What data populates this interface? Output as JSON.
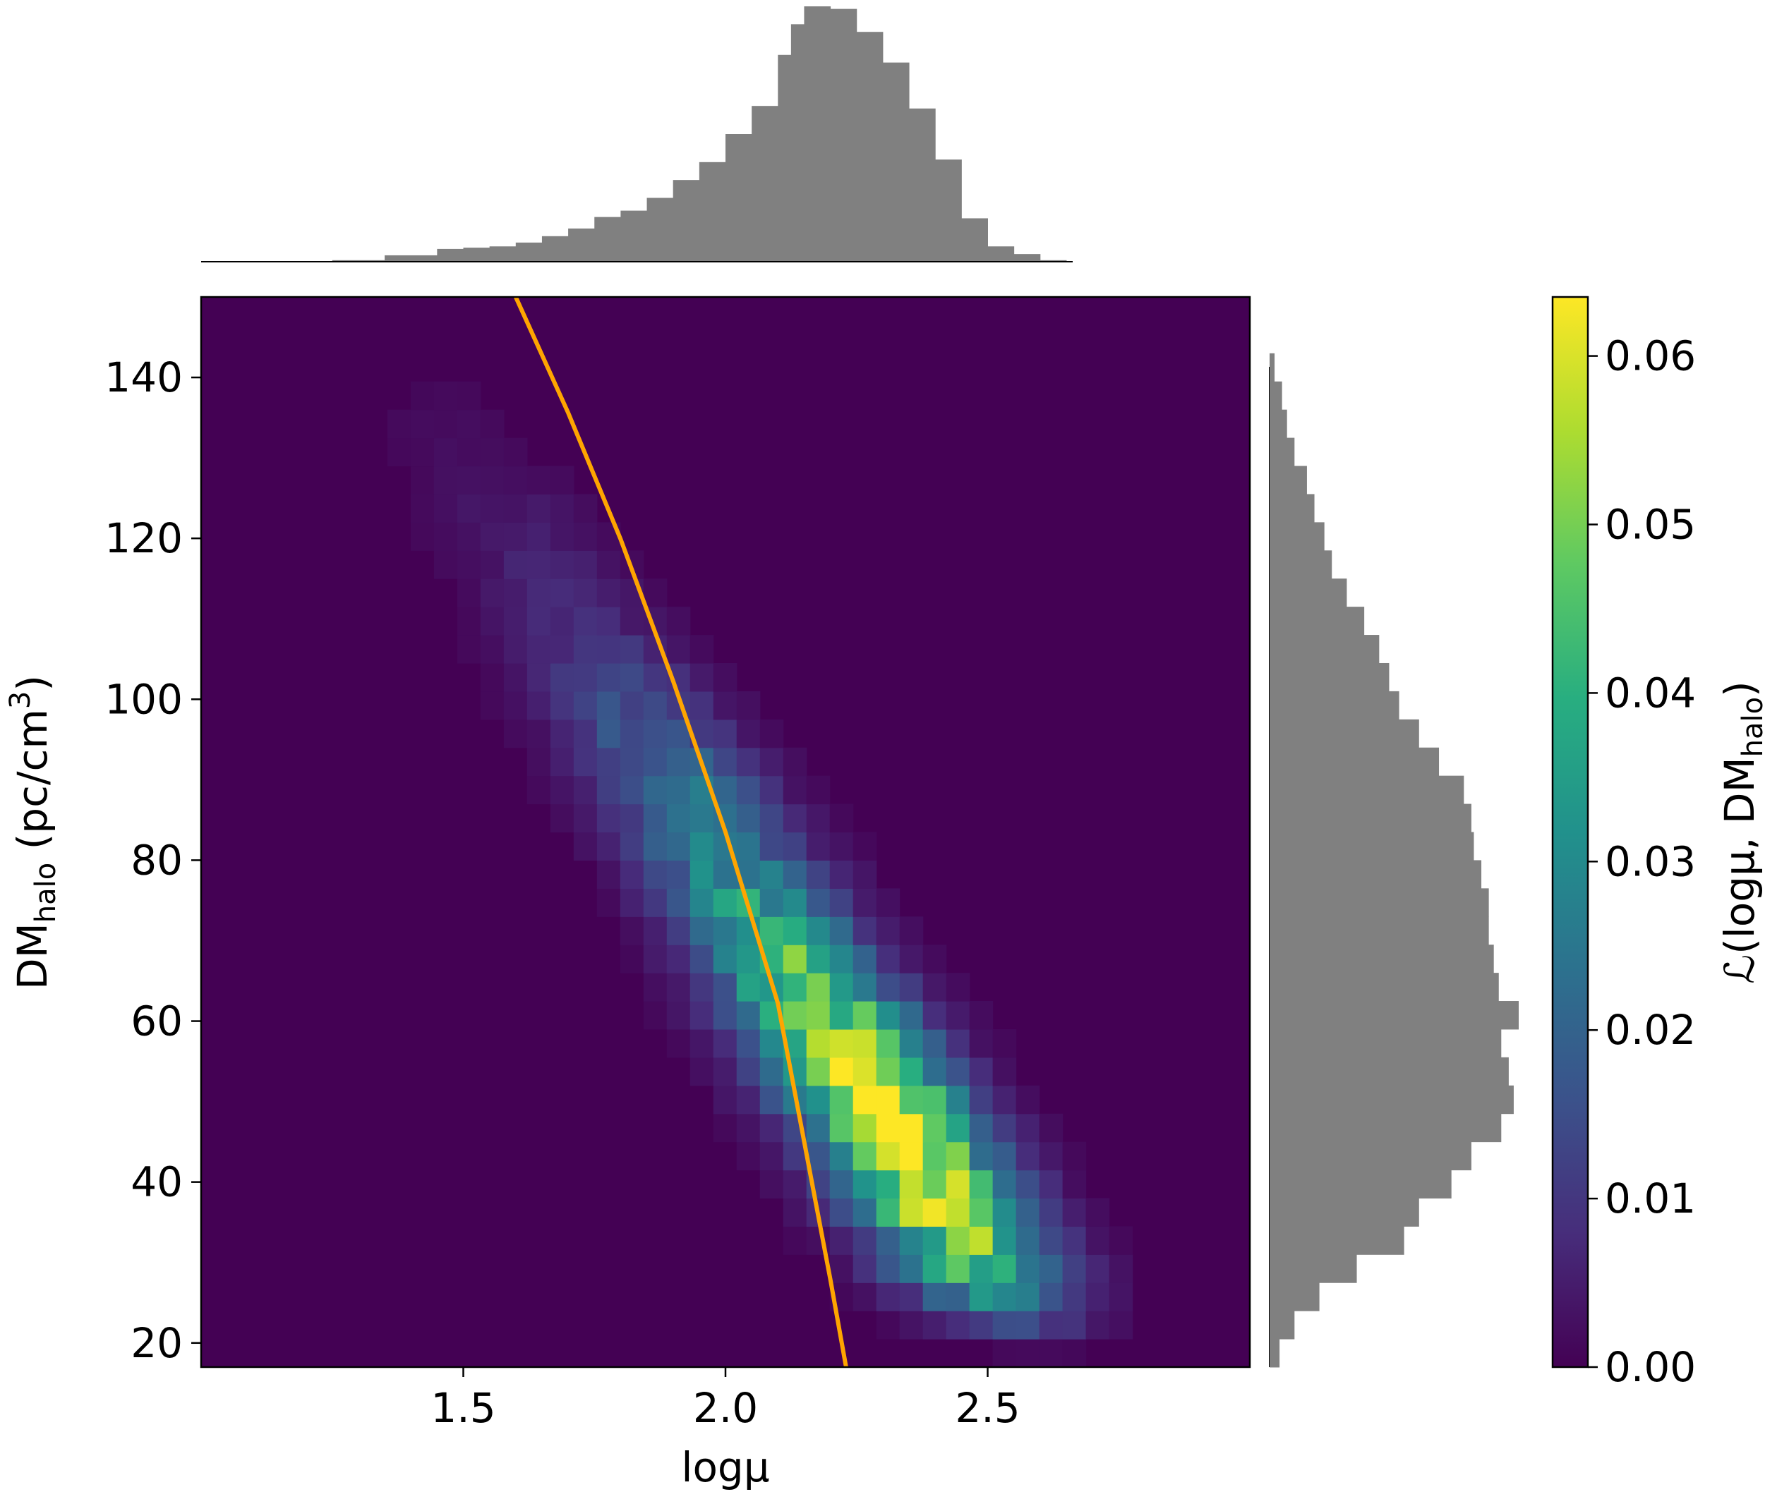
{
  "chart_data": {
    "type": "heatmap",
    "title": "",
    "xlabel": "logμ",
    "ylabel": {
      "main": "DM",
      "subscript": "halo",
      "units_pre": " (pc/cm",
      "units_sup": "3",
      "units_post": ")"
    },
    "colorbar_label": {
      "pre": "ℒ(logμ, DM",
      "subscript": "halo",
      "post": ")"
    },
    "xlim": [
      1.0,
      3.0
    ],
    "ylim": [
      17,
      150
    ],
    "x_ticks": [
      1.5,
      2.0,
      2.5
    ],
    "x_tick_labels": [
      "1.5",
      "2.0",
      "2.5"
    ],
    "y_ticks": [
      20,
      40,
      60,
      80,
      100,
      120,
      140
    ],
    "y_tick_labels": [
      "20",
      "40",
      "60",
      "80",
      "100",
      "120",
      "140"
    ],
    "colorbar": {
      "colormap": "viridis",
      "vmin": 0.0,
      "vmax": 0.0635,
      "ticks": [
        0.0,
        0.01,
        0.02,
        0.03,
        0.04,
        0.05,
        0.06
      ],
      "tick_labels": [
        "0.00",
        "0.01",
        "0.02",
        "0.03",
        "0.04",
        "0.05",
        "0.06"
      ]
    },
    "grid": false,
    "heatmap_model": {
      "bin_width_x": 0.0444,
      "bin_width_y": 3.5,
      "ridge_anchor": {
        "x": 2.19,
        "y": 60
      },
      "ridge_slope_x_per_y": -0.0095,
      "sigma_across_x": 0.115,
      "y_density_knots": [
        [
          17,
          0.0
        ],
        [
          20,
          0.05
        ],
        [
          25,
          0.4
        ],
        [
          30,
          0.7
        ],
        [
          35,
          0.85
        ],
        [
          45,
          0.95
        ],
        [
          50,
          1.0
        ],
        [
          55,
          0.93
        ],
        [
          60,
          0.85
        ],
        [
          70,
          0.62
        ],
        [
          80,
          0.45
        ],
        [
          90,
          0.35
        ],
        [
          100,
          0.23
        ],
        [
          110,
          0.12
        ],
        [
          120,
          0.08
        ],
        [
          130,
          0.04
        ],
        [
          140,
          0.02
        ],
        [
          150,
          0.0
        ]
      ],
      "peak": 0.0635
    },
    "fit_curve": {
      "color": "#ffa500",
      "x": [
        1.6,
        1.7,
        1.8,
        1.9,
        2.0,
        2.1,
        2.2,
        2.23
      ],
      "y": [
        150,
        135.6,
        119.9,
        102.3,
        83.5,
        62.2,
        27.9,
        17
      ]
    },
    "marginal_x": {
      "color": "#808080",
      "bin_edges": [
        1.25,
        1.35,
        1.45,
        1.5,
        1.55,
        1.6,
        1.65,
        1.7,
        1.75,
        1.8,
        1.85,
        1.9,
        1.95,
        2.0,
        2.05,
        2.1,
        2.125,
        2.15,
        2.2,
        2.25,
        2.3,
        2.35,
        2.4,
        2.45,
        2.5,
        2.55,
        2.6,
        2.65
      ],
      "counts": [
        0.006,
        0.025,
        0.05,
        0.055,
        0.06,
        0.075,
        0.1,
        0.13,
        0.175,
        0.2,
        0.25,
        0.32,
        0.39,
        0.5,
        0.61,
        0.81,
        0.93,
        1.0,
        0.99,
        0.9,
        0.78,
        0.6,
        0.4,
        0.17,
        0.06,
        0.03,
        0.006
      ]
    },
    "marginal_y": {
      "color": "#808080",
      "bin_edges": [
        17,
        20.5,
        24,
        27.5,
        31,
        34.5,
        38,
        41.5,
        45,
        48.5,
        52,
        55.5,
        59,
        62.5,
        66,
        69.5,
        73,
        76.5,
        80,
        83.5,
        87,
        90.5,
        94,
        97.5,
        101,
        104.5,
        108,
        111.5,
        115,
        118.5,
        122,
        125.5,
        129,
        132.5,
        136,
        139.5,
        143
      ],
      "counts": [
        0.04,
        0.1,
        0.2,
        0.35,
        0.54,
        0.6,
        0.73,
        0.81,
        0.93,
        0.98,
        0.96,
        0.93,
        1.0,
        0.92,
        0.9,
        0.88,
        0.88,
        0.85,
        0.82,
        0.81,
        0.78,
        0.68,
        0.6,
        0.52,
        0.48,
        0.44,
        0.38,
        0.31,
        0.25,
        0.22,
        0.18,
        0.15,
        0.1,
        0.07,
        0.05,
        0.02
      ]
    }
  }
}
